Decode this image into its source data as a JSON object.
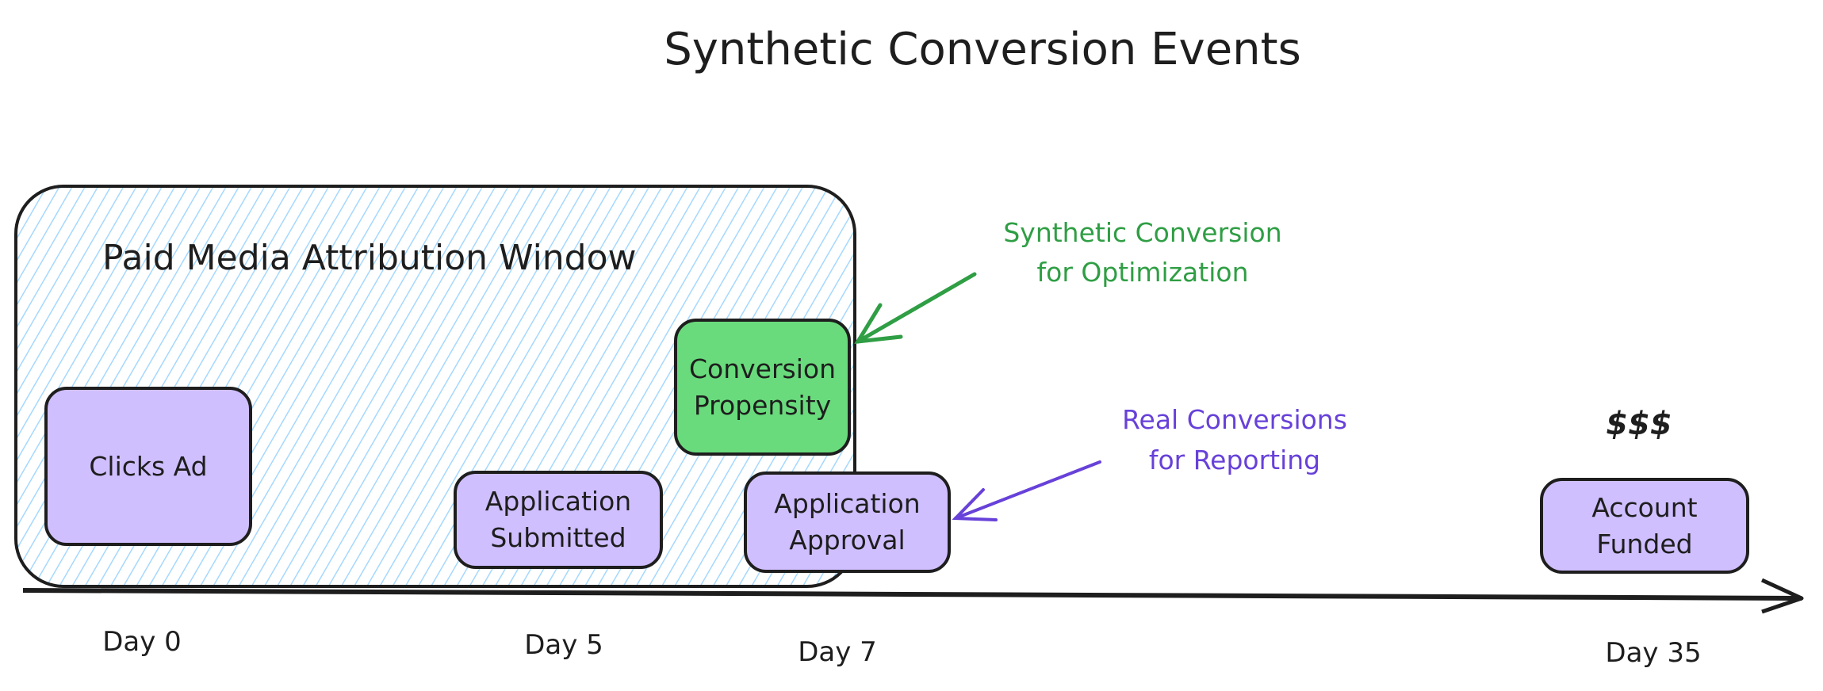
{
  "title": "Synthetic Conversion Events",
  "window": {
    "label": "Paid Media Attribution Window",
    "fill_color": "#a5d8ff"
  },
  "events": [
    {
      "label": "Clicks Ad",
      "color": "#d0bfff"
    },
    {
      "label": "Application Submitted",
      "color": "#d0bfff"
    },
    {
      "label": "Conversion Propensity",
      "color": "#69db7c"
    },
    {
      "label": "Application Approval",
      "color": "#d0bfff"
    },
    {
      "label": "Account Funded",
      "color": "#d0bfff"
    }
  ],
  "money_label": "$$$",
  "annotations": {
    "synthetic": {
      "line1": "Synthetic Conversion",
      "line2": "for Optimization",
      "color": "#2f9e44"
    },
    "real": {
      "line1": "Real Conversions",
      "line2": "for Reporting",
      "color": "#6741d9"
    }
  },
  "timeline": {
    "days": [
      "Day 0",
      "Day 5",
      "Day 7",
      "Day 35"
    ]
  }
}
